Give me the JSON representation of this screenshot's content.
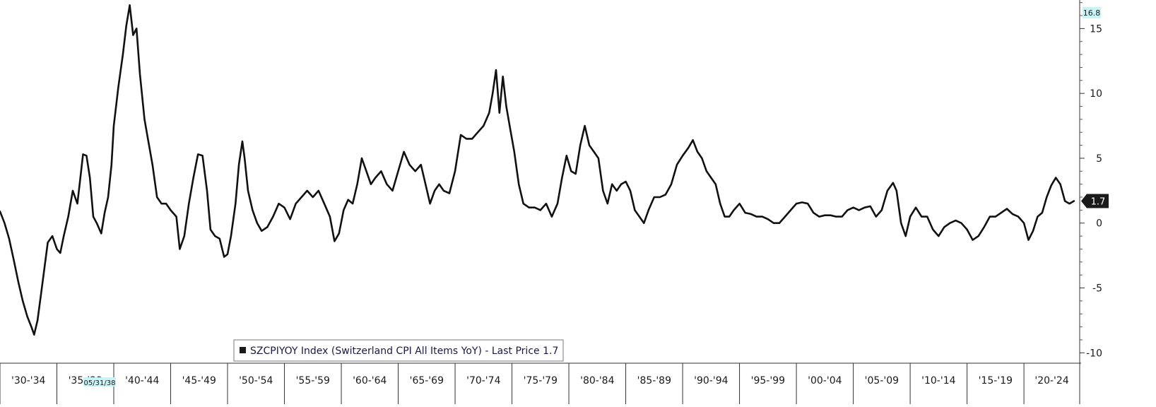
{
  "chart_data": {
    "type": "line",
    "series": [
      {
        "name": "SZCPIYOY Index (Switzerland CPI All Items YoY)",
        "color": "#111111",
        "points": [
          [
            1930.0,
            0.9
          ],
          [
            1930.4,
            0.0
          ],
          [
            1930.8,
            -1.2
          ],
          [
            1931.2,
            -2.8
          ],
          [
            1931.6,
            -4.5
          ],
          [
            1932.0,
            -6.0
          ],
          [
            1932.4,
            -7.2
          ],
          [
            1932.8,
            -8.1
          ],
          [
            1933.0,
            -8.6
          ],
          [
            1933.3,
            -7.5
          ],
          [
            1933.6,
            -5.5
          ],
          [
            1933.9,
            -3.5
          ],
          [
            1934.2,
            -1.5
          ],
          [
            1934.6,
            -1.0
          ],
          [
            1935.0,
            -2.0
          ],
          [
            1935.3,
            -2.3
          ],
          [
            1935.6,
            -1.0
          ],
          [
            1936.0,
            0.5
          ],
          [
            1936.4,
            2.5
          ],
          [
            1936.8,
            1.5
          ],
          [
            1937.0,
            3.0
          ],
          [
            1937.3,
            5.3
          ],
          [
            1937.6,
            5.2
          ],
          [
            1937.9,
            3.5
          ],
          [
            1938.2,
            0.5
          ],
          [
            1938.5,
            0.0
          ],
          [
            1938.9,
            -0.8
          ],
          [
            1939.2,
            0.8
          ],
          [
            1939.5,
            2.0
          ],
          [
            1939.8,
            4.5
          ],
          [
            1940.0,
            7.5
          ],
          [
            1940.4,
            10.5
          ],
          [
            1940.8,
            13.0
          ],
          [
            1941.1,
            15.2
          ],
          [
            1941.4,
            16.8
          ],
          [
            1941.7,
            14.5
          ],
          [
            1942.0,
            15.0
          ],
          [
            1942.3,
            11.5
          ],
          [
            1942.7,
            8.0
          ],
          [
            1943.0,
            6.5
          ],
          [
            1943.4,
            4.5
          ],
          [
            1943.8,
            2.0
          ],
          [
            1944.2,
            1.5
          ],
          [
            1944.6,
            1.5
          ],
          [
            1945.0,
            1.0
          ],
          [
            1945.5,
            0.5
          ],
          [
            1945.8,
            -2.0
          ],
          [
            1946.2,
            -1.0
          ],
          [
            1946.6,
            1.5
          ],
          [
            1947.0,
            3.5
          ],
          [
            1947.4,
            5.3
          ],
          [
            1947.8,
            5.2
          ],
          [
            1948.2,
            2.5
          ],
          [
            1948.5,
            -0.5
          ],
          [
            1948.9,
            -1.0
          ],
          [
            1949.3,
            -1.2
          ],
          [
            1949.7,
            -2.6
          ],
          [
            1950.0,
            -2.4
          ],
          [
            1950.3,
            -1.0
          ],
          [
            1950.7,
            1.5
          ],
          [
            1951.0,
            4.5
          ],
          [
            1951.3,
            6.3
          ],
          [
            1951.5,
            5.0
          ],
          [
            1951.8,
            2.5
          ],
          [
            1952.2,
            1.0
          ],
          [
            1952.6,
            0.0
          ],
          [
            1953.0,
            -0.6
          ],
          [
            1953.5,
            -0.3
          ],
          [
            1954.0,
            0.5
          ],
          [
            1954.5,
            1.5
          ],
          [
            1955.0,
            1.2
          ],
          [
            1955.5,
            0.3
          ],
          [
            1956.0,
            1.5
          ],
          [
            1956.5,
            2.0
          ],
          [
            1957.0,
            2.5
          ],
          [
            1957.5,
            2.0
          ],
          [
            1958.0,
            2.5
          ],
          [
            1958.5,
            1.5
          ],
          [
            1959.0,
            0.5
          ],
          [
            1959.4,
            -1.4
          ],
          [
            1959.8,
            -0.8
          ],
          [
            1960.2,
            1.0
          ],
          [
            1960.6,
            1.8
          ],
          [
            1961.0,
            1.5
          ],
          [
            1961.4,
            3.0
          ],
          [
            1961.8,
            5.0
          ],
          [
            1962.2,
            4.0
          ],
          [
            1962.6,
            3.0
          ],
          [
            1963.0,
            3.5
          ],
          [
            1963.5,
            4.0
          ],
          [
            1964.0,
            3.0
          ],
          [
            1964.5,
            2.5
          ],
          [
            1965.0,
            4.0
          ],
          [
            1965.5,
            5.5
          ],
          [
            1966.0,
            4.5
          ],
          [
            1966.5,
            4.0
          ],
          [
            1967.0,
            4.5
          ],
          [
            1967.4,
            3.0
          ],
          [
            1967.8,
            1.5
          ],
          [
            1968.2,
            2.5
          ],
          [
            1968.6,
            3.0
          ],
          [
            1969.0,
            2.5
          ],
          [
            1969.5,
            2.3
          ],
          [
            1970.0,
            4.0
          ],
          [
            1970.5,
            6.8
          ],
          [
            1971.0,
            6.5
          ],
          [
            1971.5,
            6.5
          ],
          [
            1972.0,
            7.0
          ],
          [
            1972.5,
            7.5
          ],
          [
            1973.0,
            8.5
          ],
          [
            1973.3,
            10.0
          ],
          [
            1973.6,
            11.8
          ],
          [
            1973.9,
            8.5
          ],
          [
            1974.2,
            11.3
          ],
          [
            1974.5,
            9.0
          ],
          [
            1974.8,
            7.5
          ],
          [
            1975.2,
            5.5
          ],
          [
            1975.6,
            3.0
          ],
          [
            1976.0,
            1.5
          ],
          [
            1976.5,
            1.2
          ],
          [
            1977.0,
            1.2
          ],
          [
            1977.5,
            1.0
          ],
          [
            1978.0,
            1.5
          ],
          [
            1978.5,
            0.5
          ],
          [
            1979.0,
            1.5
          ],
          [
            1979.4,
            3.5
          ],
          [
            1979.8,
            5.2
          ],
          [
            1980.2,
            4.0
          ],
          [
            1980.6,
            3.8
          ],
          [
            1981.0,
            6.0
          ],
          [
            1981.4,
            7.5
          ],
          [
            1981.8,
            6.0
          ],
          [
            1982.2,
            5.5
          ],
          [
            1982.6,
            5.0
          ],
          [
            1983.0,
            2.5
          ],
          [
            1983.4,
            1.5
          ],
          [
            1983.8,
            3.0
          ],
          [
            1984.2,
            2.5
          ],
          [
            1984.6,
            3.0
          ],
          [
            1985.0,
            3.2
          ],
          [
            1985.4,
            2.5
          ],
          [
            1985.8,
            1.0
          ],
          [
            1986.2,
            0.5
          ],
          [
            1986.6,
            0.0
          ],
          [
            1987.0,
            1.0
          ],
          [
            1987.5,
            2.0
          ],
          [
            1988.0,
            2.0
          ],
          [
            1988.5,
            2.2
          ],
          [
            1989.0,
            3.0
          ],
          [
            1989.5,
            4.5
          ],
          [
            1990.0,
            5.2
          ],
          [
            1990.5,
            5.8
          ],
          [
            1990.9,
            6.4
          ],
          [
            1991.3,
            5.5
          ],
          [
            1991.7,
            5.0
          ],
          [
            1992.1,
            4.0
          ],
          [
            1992.5,
            3.5
          ],
          [
            1992.9,
            3.0
          ],
          [
            1993.3,
            1.5
          ],
          [
            1993.7,
            0.5
          ],
          [
            1994.1,
            0.5
          ],
          [
            1994.5,
            1.0
          ],
          [
            1995.0,
            1.5
          ],
          [
            1995.5,
            0.8
          ],
          [
            1996.0,
            0.7
          ],
          [
            1996.5,
            0.5
          ],
          [
            1997.0,
            0.5
          ],
          [
            1997.5,
            0.3
          ],
          [
            1998.0,
            0.0
          ],
          [
            1998.5,
            0.0
          ],
          [
            1999.0,
            0.5
          ],
          [
            1999.5,
            1.0
          ],
          [
            2000.0,
            1.5
          ],
          [
            2000.5,
            1.6
          ],
          [
            2001.0,
            1.5
          ],
          [
            2001.5,
            0.8
          ],
          [
            2002.0,
            0.5
          ],
          [
            2002.5,
            0.6
          ],
          [
            2003.0,
            0.6
          ],
          [
            2003.5,
            0.5
          ],
          [
            2004.0,
            0.5
          ],
          [
            2004.5,
            1.0
          ],
          [
            2005.0,
            1.2
          ],
          [
            2005.5,
            1.0
          ],
          [
            2006.0,
            1.2
          ],
          [
            2006.5,
            1.3
          ],
          [
            2007.0,
            0.5
          ],
          [
            2007.5,
            1.0
          ],
          [
            2008.0,
            2.5
          ],
          [
            2008.5,
            3.1
          ],
          [
            2008.8,
            2.5
          ],
          [
            2009.2,
            0.0
          ],
          [
            2009.6,
            -1.0
          ],
          [
            2010.0,
            0.5
          ],
          [
            2010.5,
            1.2
          ],
          [
            2011.0,
            0.5
          ],
          [
            2011.5,
            0.5
          ],
          [
            2012.0,
            -0.5
          ],
          [
            2012.5,
            -1.0
          ],
          [
            2013.0,
            -0.3
          ],
          [
            2013.5,
            0.0
          ],
          [
            2014.0,
            0.2
          ],
          [
            2014.5,
            0.0
          ],
          [
            2015.0,
            -0.5
          ],
          [
            2015.5,
            -1.3
          ],
          [
            2016.0,
            -1.0
          ],
          [
            2016.5,
            -0.3
          ],
          [
            2017.0,
            0.5
          ],
          [
            2017.5,
            0.5
          ],
          [
            2018.0,
            0.8
          ],
          [
            2018.5,
            1.1
          ],
          [
            2019.0,
            0.7
          ],
          [
            2019.5,
            0.5
          ],
          [
            2020.0,
            0.0
          ],
          [
            2020.4,
            -1.3
          ],
          [
            2020.8,
            -0.6
          ],
          [
            2021.2,
            0.5
          ],
          [
            2021.6,
            0.8
          ],
          [
            2022.0,
            2.0
          ],
          [
            2022.4,
            2.9
          ],
          [
            2022.8,
            3.5
          ],
          [
            2023.2,
            3.0
          ],
          [
            2023.6,
            1.7
          ],
          [
            2024.0,
            1.5
          ],
          [
            2024.4,
            1.7
          ]
        ]
      }
    ],
    "x_range": [
      1930,
      2024.9
    ],
    "ylim": [
      -10.8,
      17.2
    ],
    "y_ticks": [
      15,
      10,
      5,
      0,
      -5,
      -10
    ],
    "y_tick_labels": [
      "15",
      "10",
      "5",
      "0",
      "-5",
      "-10"
    ],
    "x_intervals": [
      "'30-'34",
      "'35-'39",
      "'40-'44",
      "'45-'49",
      "'50-'54",
      "'55-'59",
      "'60-'64",
      "'65-'69",
      "'70-'74",
      "'75-'79",
      "'80-'84",
      "'85-'89",
      "'90-'94",
      "'95-'99",
      "'00-'04",
      "'05-'09",
      "'10-'14",
      "'15-'19",
      "'20-'24"
    ],
    "max_marker": {
      "value": 16.8,
      "label": "16.8",
      "color": "#c9f3f6"
    },
    "last_marker": {
      "value": 1.7,
      "label": "1.7",
      "color": "#1a1a1a"
    },
    "cursor_date": "05/31/38",
    "legend": {
      "text": "SZCPIYOY Index (Switzerland CPI All Items YoY) - Last Price 1.7",
      "swatch_color": "#1a1a1a",
      "text_color": "#1a1a44"
    },
    "grid": false
  }
}
